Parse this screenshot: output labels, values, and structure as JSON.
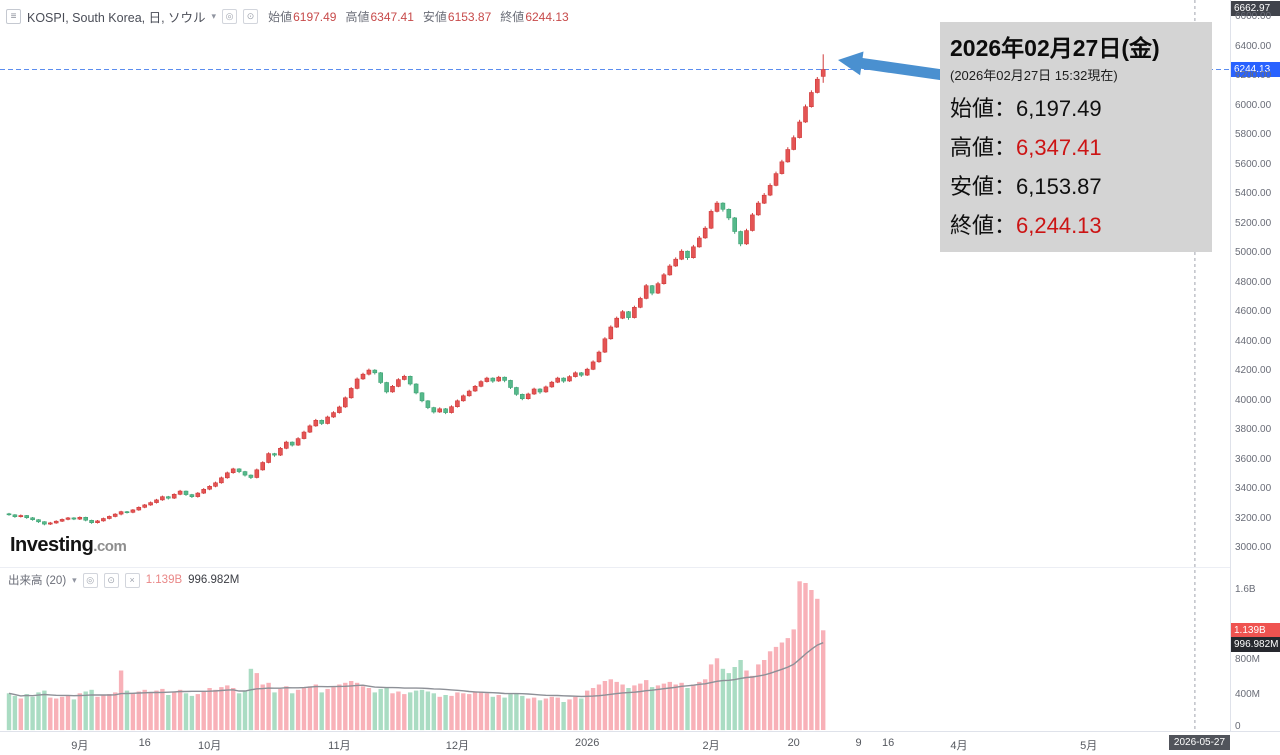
{
  "toolbar": {
    "symbol_title": "KOSPI, South Korea, 日, ソウル",
    "ohlc": [
      {
        "label": "始値",
        "value": "6197.49"
      },
      {
        "label": "高値",
        "value": "6347.41"
      },
      {
        "label": "安値",
        "value": "6153.87"
      },
      {
        "label": "終値",
        "value": "6244.13"
      }
    ]
  },
  "tooltip": {
    "title": "2026年02月27日(金)",
    "subtitle": "(2026年02月27日 15:32現在)",
    "rows": [
      {
        "label": "始値：",
        "value": "6,197.49",
        "highlight": false
      },
      {
        "label": "高値：",
        "value": "6,347.41",
        "highlight": true
      },
      {
        "label": "安値：",
        "value": "6,153.87",
        "highlight": false
      },
      {
        "label": "終値：",
        "value": "6,244.13",
        "highlight": true
      }
    ]
  },
  "watermark": {
    "brand": "Investing",
    "suffix": ".com"
  },
  "volume_legend": {
    "label": "出来高 (20)",
    "current": "1.139B",
    "ma": "996.982M"
  },
  "price_axis": {
    "top_badge": "6662.97",
    "current_badge": "6244.13",
    "ticks": [
      "6600.00",
      "6400.00",
      "6200.00",
      "6000.00",
      "5800.00",
      "5600.00",
      "5400.00",
      "5200.00",
      "5000.00",
      "4800.00",
      "4600.00",
      "4400.00",
      "4200.00",
      "4000.00",
      "3800.00",
      "3600.00",
      "3400.00",
      "3200.00",
      "3000.00"
    ]
  },
  "volume_axis": {
    "ticks": [
      {
        "label": "1.6B",
        "value": 1600
      },
      {
        "label": "800M",
        "value": 800
      },
      {
        "label": "400M",
        "value": 400
      },
      {
        "label": "0",
        "value": 0
      }
    ],
    "current_badge": "1.139B",
    "current_value": 1139,
    "ma_badge": "996.982M",
    "ma_value": 996.982
  },
  "time_axis": {
    "ticks": [
      {
        "label": "9月",
        "i": 12
      },
      {
        "label": "16",
        "i": 23
      },
      {
        "label": "10月",
        "i": 34
      },
      {
        "label": "11月",
        "i": 56
      },
      {
        "label": "12月",
        "i": 76
      },
      {
        "label": "2026",
        "i": 98
      },
      {
        "label": "2月",
        "i": 119
      },
      {
        "label": "20",
        "i": 133
      },
      {
        "label": "9",
        "i": 144
      },
      {
        "label": "16",
        "i": 149
      },
      {
        "label": "4月",
        "i": 161
      },
      {
        "label": "5月",
        "i": 183
      }
    ],
    "future_date_badge": "2026-05-27",
    "future_line_index": 201
  },
  "colors": {
    "up": "#cf3b3b",
    "up_fill": "#e45454",
    "down": "#3fa274",
    "down_fill": "#56b98b",
    "vol_up": "#f8b1b8",
    "vol_down": "#aadcc3",
    "vol_ma": "#8d9097",
    "price_line": "#5b8def",
    "future_line": "#a0a4ad",
    "arrow": "#4a90d0"
  },
  "chart_data": {
    "type": "candlestick",
    "title": "KOSPI, South Korea, Daily (ソウル)",
    "last_candle_date": "2026-02-27",
    "current_price": 6244.13,
    "ohlc_current": {
      "open": 6197.49,
      "high": 6347.41,
      "low": 6153.87,
      "close": 6244.13
    },
    "volume_current_label": "1.139B",
    "volume_ma20_label": "996.982M",
    "price_axis_range": [
      3000,
      6662.97
    ],
    "volume_axis_range_millions": [
      0,
      1600
    ],
    "volume_ma_period": 20,
    "candle_fields": [
      "open",
      "high",
      "low",
      "close",
      "volume_millions"
    ],
    "candles": [
      [
        3232,
        3238,
        3218,
        3225,
        420
      ],
      [
        3225,
        3230,
        3205,
        3212,
        390
      ],
      [
        3212,
        3227,
        3207,
        3220,
        360
      ],
      [
        3220,
        3224,
        3198,
        3205,
        410
      ],
      [
        3205,
        3210,
        3185,
        3192,
        380
      ],
      [
        3192,
        3196,
        3170,
        3178,
        430
      ],
      [
        3178,
        3182,
        3154,
        3162,
        450
      ],
      [
        3162,
        3177,
        3156,
        3170,
        370
      ],
      [
        3170,
        3188,
        3164,
        3182,
        360
      ],
      [
        3182,
        3200,
        3176,
        3194,
        380
      ],
      [
        3194,
        3210,
        3188,
        3204,
        400
      ],
      [
        3204,
        3209,
        3189,
        3196,
        350
      ],
      [
        3196,
        3214,
        3190,
        3208,
        420
      ],
      [
        3208,
        3212,
        3181,
        3188,
        440
      ],
      [
        3188,
        3192,
        3164,
        3172,
        460
      ],
      [
        3172,
        3190,
        3166,
        3184,
        380
      ],
      [
        3184,
        3206,
        3178,
        3200,
        400
      ],
      [
        3200,
        3220,
        3194,
        3214,
        410
      ],
      [
        3214,
        3236,
        3208,
        3230,
        430
      ],
      [
        3230,
        3252,
        3222,
        3246,
        680
      ],
      [
        3246,
        3251,
        3234,
        3242,
        450
      ],
      [
        3242,
        3264,
        3236,
        3258,
        420
      ],
      [
        3258,
        3282,
        3252,
        3276,
        440
      ],
      [
        3276,
        3298,
        3270,
        3292,
        460
      ],
      [
        3292,
        3315,
        3286,
        3308,
        430
      ],
      [
        3308,
        3333,
        3302,
        3326,
        450
      ],
      [
        3326,
        3355,
        3320,
        3348,
        470
      ],
      [
        3348,
        3353,
        3329,
        3338,
        400
      ],
      [
        3338,
        3371,
        3332,
        3364,
        440
      ],
      [
        3364,
        3394,
        3358,
        3386,
        460
      ],
      [
        3386,
        3390,
        3353,
        3362,
        420
      ],
      [
        3362,
        3367,
        3339,
        3348,
        390
      ],
      [
        3348,
        3379,
        3342,
        3372,
        410
      ],
      [
        3372,
        3406,
        3366,
        3398,
        440
      ],
      [
        3398,
        3426,
        3392,
        3418,
        480
      ],
      [
        3418,
        3450,
        3412,
        3442,
        460
      ],
      [
        3442,
        3484,
        3436,
        3476,
        490
      ],
      [
        3476,
        3518,
        3470,
        3510,
        510
      ],
      [
        3510,
        3544,
        3504,
        3536,
        480
      ],
      [
        3536,
        3541,
        3508,
        3518,
        420
      ],
      [
        3518,
        3523,
        3485,
        3494,
        450
      ],
      [
        3494,
        3499,
        3468,
        3478,
        700
      ],
      [
        3478,
        3538,
        3472,
        3530,
        650
      ],
      [
        3530,
        3588,
        3524,
        3580,
        520
      ],
      [
        3580,
        3649,
        3574,
        3640,
        540
      ],
      [
        3640,
        3645,
        3618,
        3630,
        430
      ],
      [
        3630,
        3685,
        3624,
        3676,
        470
      ],
      [
        3676,
        3727,
        3670,
        3718,
        500
      ],
      [
        3718,
        3723,
        3688,
        3698,
        420
      ],
      [
        3698,
        3751,
        3692,
        3742,
        460
      ],
      [
        3742,
        3795,
        3736,
        3786,
        480
      ],
      [
        3786,
        3837,
        3780,
        3828,
        500
      ],
      [
        3828,
        3875,
        3822,
        3866,
        520
      ],
      [
        3866,
        3871,
        3834,
        3844,
        430
      ],
      [
        3844,
        3897,
        3838,
        3888,
        470
      ],
      [
        3888,
        3927,
        3882,
        3918,
        490
      ],
      [
        3918,
        3965,
        3912,
        3956,
        520
      ],
      [
        3956,
        4027,
        3950,
        4018,
        540
      ],
      [
        4018,
        4091,
        4012,
        4082,
        560
      ],
      [
        4082,
        4156,
        4076,
        4146,
        540
      ],
      [
        4146,
        4188,
        4140,
        4178,
        500
      ],
      [
        4178,
        4216,
        4170,
        4206,
        480
      ],
      [
        4206,
        4212,
        4176,
        4188,
        430
      ],
      [
        4188,
        4193,
        4112,
        4122,
        470
      ],
      [
        4122,
        4127,
        4048,
        4058,
        490
      ],
      [
        4058,
        4105,
        4052,
        4096,
        420
      ],
      [
        4096,
        4151,
        4090,
        4142,
        440
      ],
      [
        4142,
        4174,
        4136,
        4164,
        410
      ],
      [
        4164,
        4169,
        4102,
        4112,
        430
      ],
      [
        4112,
        4117,
        4042,
        4052,
        450
      ],
      [
        4052,
        4057,
        3988,
        3998,
        460
      ],
      [
        3998,
        4003,
        3942,
        3952,
        440
      ],
      [
        3952,
        3957,
        3912,
        3922,
        420
      ],
      [
        3922,
        3953,
        3916,
        3944,
        380
      ],
      [
        3944,
        3949,
        3908,
        3918,
        400
      ],
      [
        3918,
        3967,
        3912,
        3958,
        390
      ],
      [
        3958,
        4007,
        3952,
        3998,
        430
      ],
      [
        3998,
        4041,
        3992,
        4032,
        420
      ],
      [
        4032,
        4073,
        4026,
        4064,
        410
      ],
      [
        4064,
        4105,
        4058,
        4096,
        430
      ],
      [
        4096,
        4137,
        4090,
        4128,
        440
      ],
      [
        4128,
        4161,
        4122,
        4152,
        420
      ],
      [
        4152,
        4157,
        4120,
        4132,
        380
      ],
      [
        4132,
        4167,
        4126,
        4158,
        400
      ],
      [
        4158,
        4163,
        4124,
        4136,
        370
      ],
      [
        4136,
        4141,
        4078,
        4088,
        410
      ],
      [
        4088,
        4093,
        4032,
        4042,
        420
      ],
      [
        4042,
        4047,
        4002,
        4012,
        390
      ],
      [
        4012,
        4053,
        4006,
        4044,
        360
      ],
      [
        4044,
        4087,
        4038,
        4078,
        370
      ],
      [
        4078,
        4083,
        4046,
        4058,
        340
      ],
      [
        4058,
        4101,
        4052,
        4092,
        360
      ],
      [
        4092,
        4133,
        4086,
        4124,
        380
      ],
      [
        4124,
        4161,
        4118,
        4152,
        370
      ],
      [
        4152,
        4157,
        4120,
        4132,
        320
      ],
      [
        4132,
        4171,
        4126,
        4162,
        350
      ],
      [
        4162,
        4197,
        4156,
        4188,
        380
      ],
      [
        4188,
        4193,
        4160,
        4172,
        360
      ],
      [
        4172,
        4222,
        4166,
        4212,
        450
      ],
      [
        4212,
        4272,
        4206,
        4262,
        480
      ],
      [
        4262,
        4338,
        4256,
        4328,
        520
      ],
      [
        4328,
        4429,
        4322,
        4418,
        560
      ],
      [
        4418,
        4509,
        4412,
        4498,
        580
      ],
      [
        4498,
        4569,
        4492,
        4558,
        550
      ],
      [
        4558,
        4613,
        4552,
        4602,
        520
      ],
      [
        4602,
        4607,
        4548,
        4562,
        480
      ],
      [
        4562,
        4643,
        4556,
        4632,
        510
      ],
      [
        4632,
        4703,
        4626,
        4692,
        530
      ],
      [
        4692,
        4790,
        4686,
        4778,
        570
      ],
      [
        4778,
        4783,
        4714,
        4728,
        490
      ],
      [
        4728,
        4804,
        4722,
        4792,
        510
      ],
      [
        4792,
        4864,
        4786,
        4852,
        530
      ],
      [
        4852,
        4924,
        4846,
        4912,
        550
      ],
      [
        4912,
        4970,
        4906,
        4958,
        520
      ],
      [
        4958,
        5025,
        4952,
        5012,
        540
      ],
      [
        5012,
        5017,
        4953,
        4968,
        480
      ],
      [
        4968,
        5055,
        4962,
        5042,
        520
      ],
      [
        5042,
        5115,
        5036,
        5102,
        550
      ],
      [
        5102,
        5181,
        5096,
        5168,
        580
      ],
      [
        5168,
        5295,
        5162,
        5282,
        750
      ],
      [
        5282,
        5352,
        5275,
        5338,
        820
      ],
      [
        5338,
        5344,
        5281,
        5296,
        700
      ],
      [
        5296,
        5302,
        5223,
        5238,
        650
      ],
      [
        5238,
        5244,
        5130,
        5146,
        720
      ],
      [
        5146,
        5152,
        5046,
        5062,
        800
      ],
      [
        5062,
        5165,
        5055,
        5152,
        680
      ],
      [
        5152,
        5271,
        5146,
        5258,
        620
      ],
      [
        5258,
        5352,
        5252,
        5338,
        750
      ],
      [
        5338,
        5406,
        5332,
        5392,
        800
      ],
      [
        5392,
        5472,
        5386,
        5458,
        900
      ],
      [
        5458,
        5552,
        5452,
        5538,
        950
      ],
      [
        5538,
        5632,
        5532,
        5618,
        1000
      ],
      [
        5618,
        5717,
        5612,
        5702,
        1050
      ],
      [
        5702,
        5797,
        5696,
        5782,
        1150
      ],
      [
        5782,
        5903,
        5776,
        5888,
        1700
      ],
      [
        5888,
        6007,
        5882,
        5992,
        1680
      ],
      [
        5992,
        6103,
        5986,
        6088,
        1600
      ],
      [
        6088,
        6193,
        6082,
        6178,
        1500
      ],
      [
        6197.49,
        6347.41,
        6153.87,
        6244.13,
        1139
      ]
    ]
  }
}
